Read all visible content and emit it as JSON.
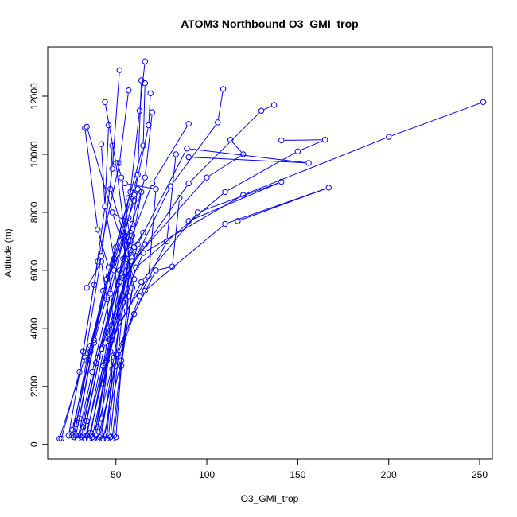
{
  "chart_data": {
    "type": "line",
    "title": "ATOM3 Northbound O3_GMI_trop",
    "xlabel": "O3_GMI_trop",
    "ylabel": "Altitude (m)",
    "xlim": [
      12.5,
      257
    ],
    "ylim": [
      -500,
      13700
    ],
    "x_ticks": [
      50,
      100,
      150,
      200,
      250
    ],
    "y_ticks": [
      0,
      2000,
      4000,
      6000,
      8000,
      10000,
      12000
    ],
    "x_tick_labels": [
      "50",
      "100",
      "150",
      "200",
      "250"
    ],
    "y_tick_labels": [
      "0",
      "2000",
      "4000",
      "6000",
      "8000",
      "10000",
      "12000"
    ],
    "grid": false,
    "legend": "none",
    "color": "#0000ff",
    "marker": "open-circle",
    "series": [
      {
        "x": [
          19,
          33,
          42,
          48,
          52
        ],
        "y": [
          200,
          3000,
          6500,
          9500,
          12900
        ]
      },
      {
        "x": [
          20,
          30,
          38,
          44,
          46
        ],
        "y": [
          200,
          2500,
          5500,
          8200,
          11000
        ]
      },
      {
        "x": [
          24,
          32,
          40,
          52,
          57
        ],
        "y": [
          300,
          3200,
          6300,
          9700,
          12200
        ]
      },
      {
        "x": [
          26,
          34,
          45,
          58,
          63,
          66
        ],
        "y": [
          300,
          2900,
          5700,
          8700,
          11500,
          13200
        ]
      },
      {
        "x": [
          27,
          36,
          48,
          62,
          64
        ],
        "y": [
          250,
          3400,
          6200,
          9300,
          12550
        ]
      },
      {
        "x": [
          28,
          38,
          50,
          65,
          66
        ],
        "y": [
          300,
          3600,
          6800,
          10300,
          12450
        ]
      },
      {
        "x": [
          29,
          37,
          47,
          60,
          68,
          69
        ],
        "y": [
          200,
          2500,
          5200,
          8600,
          11000,
          12100
        ]
      },
      {
        "x": [
          30,
          40,
          52,
          66,
          70
        ],
        "y": [
          300,
          3000,
          6000,
          9200,
          11450
        ]
      },
      {
        "x": [
          31,
          39,
          54,
          70,
          90
        ],
        "y": [
          250,
          2800,
          6400,
          9000,
          11050
        ]
      },
      {
        "x": [
          32,
          42,
          56,
          80,
          106,
          109
        ],
        "y": [
          300,
          3300,
          5800,
          8900,
          11100,
          12250
        ]
      },
      {
        "x": [
          33,
          43,
          57,
          90,
          130,
          137
        ],
        "y": [
          200,
          2700,
          6000,
          9000,
          11500,
          11700
        ]
      },
      {
        "x": [
          34,
          44,
          59,
          100,
          120,
          113
        ],
        "y": [
          300,
          3500,
          6300,
          9200,
          10000,
          10500
        ]
      },
      {
        "x": [
          35,
          45,
          61,
          110,
          150,
          165,
          141
        ],
        "y": [
          200,
          2900,
          6100,
          8700,
          10100,
          10500,
          10480
        ]
      },
      {
        "x": [
          36,
          46,
          65,
          120,
          200,
          252
        ],
        "y": [
          300,
          3800,
          6600,
          8600,
          10600,
          11800
        ]
      },
      {
        "x": [
          37,
          47,
          62,
          89,
          156,
          90
        ],
        "y": [
          250,
          3200,
          6900,
          10200,
          9700,
          9900
        ]
      },
      {
        "x": [
          38,
          48,
          64,
          95,
          141,
          90
        ],
        "y": [
          200,
          3600,
          5600,
          8000,
          9050,
          7700
        ]
      },
      {
        "x": [
          39,
          49,
          66,
          110,
          167,
          117
        ],
        "y": [
          300,
          3000,
          5300,
          7600,
          8850,
          7700
        ]
      },
      {
        "x": [
          40,
          50,
          60,
          72,
          81,
          85
        ],
        "y": [
          200,
          2700,
          4500,
          6000,
          6130,
          8500
        ]
      },
      {
        "x": [
          41,
          51,
          63,
          78,
          83
        ],
        "y": [
          250,
          3100,
          5100,
          7000,
          10000
        ]
      },
      {
        "x": [
          42,
          52,
          68,
          72,
          55
        ],
        "y": [
          300,
          4200,
          5800,
          8800,
          9000
        ]
      },
      {
        "x": [
          43,
          53,
          60,
          48,
          34
        ],
        "y": [
          200,
          2900,
          5700,
          8000,
          10950
        ]
      },
      {
        "x": [
          44,
          50,
          46,
          40,
          33
        ],
        "y": [
          300,
          3100,
          6100,
          7400,
          10900
        ]
      },
      {
        "x": [
          45,
          48,
          45,
          42,
          34
        ],
        "y": [
          200,
          2600,
          5000,
          6300,
          5400
        ]
      },
      {
        "x": [
          46,
          52,
          49,
          44,
          42
        ],
        "y": [
          300,
          4400,
          6400,
          8200,
          10350
        ]
      },
      {
        "x": [
          47,
          54,
          55,
          50,
          44
        ],
        "y": [
          250,
          4900,
          7200,
          9700,
          11800
        ]
      },
      {
        "x": [
          48,
          56,
          58,
          53,
          51
        ],
        "y": [
          200,
          4600,
          7000,
          9200,
          9700
        ]
      },
      {
        "x": [
          49,
          57,
          54,
          47,
          48
        ],
        "y": [
          300,
          5100,
          7300,
          8800,
          10300
        ]
      },
      {
        "x": [
          50,
          53,
          59,
          55,
          48
        ],
        "y": [
          250,
          2700,
          5400,
          7700,
          8000
        ]
      },
      {
        "x": [
          38,
          43,
          50,
          58,
          64
        ],
        "y": [
          200,
          2100,
          4400,
          6600,
          8700
        ]
      },
      {
        "x": [
          26,
          35,
          43,
          54,
          57
        ],
        "y": [
          500,
          2900,
          5300,
          7200,
          8500
        ]
      },
      {
        "x": [
          28,
          36,
          46,
          59,
          62
        ],
        "y": [
          700,
          3200,
          5800,
          7600,
          8800
        ]
      },
      {
        "x": [
          30,
          38,
          49,
          57,
          60
        ],
        "y": [
          900,
          3500,
          6000,
          7800,
          8400
        ]
      },
      {
        "x": [
          32,
          40,
          51,
          56,
          58
        ],
        "y": [
          600,
          3000,
          5500,
          6900,
          7300
        ]
      },
      {
        "x": [
          34,
          42,
          53,
          57,
          59
        ],
        "y": [
          800,
          3300,
          5900,
          7000,
          7200
        ]
      },
      {
        "x": [
          36,
          44,
          54,
          58,
          56
        ],
        "y": [
          400,
          2800,
          5100,
          6700,
          6400
        ]
      },
      {
        "x": [
          40,
          46,
          52,
          60,
          65
        ],
        "y": [
          600,
          3400,
          5600,
          6800,
          7300
        ]
      },
      {
        "x": [
          42,
          47,
          55,
          61,
          66
        ],
        "y": [
          900,
          3600,
          5700,
          6500,
          6900
        ]
      }
    ]
  }
}
